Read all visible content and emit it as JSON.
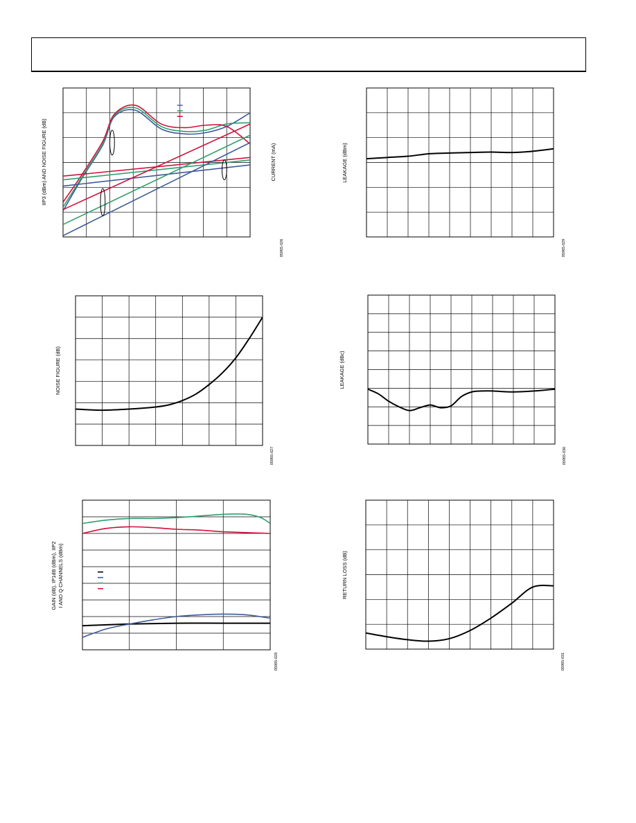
{
  "header": {
    "title": ""
  },
  "chart_data": [
    {
      "id": "c1",
      "type": "line",
      "ylabel": "IIP3 (dBm) AND NOISE FIGURE (dB)",
      "y2label": "CURRENT (mA)",
      "code": "05965-026",
      "xlim": [
        0,
        8
      ],
      "ylim": [
        0,
        6
      ],
      "xgrid": 8,
      "ygrid": 6,
      "grid": true,
      "legend": {
        "position": "top-right",
        "colors": [
          "#4a6fa5",
          "#2e9e6e",
          "#d0103a"
        ]
      },
      "series": [
        {
          "color": "#3c5a9a",
          "x": [
            0,
            0.8,
            1.7,
            2.2,
            3.1,
            4.2,
            5.2,
            6.1,
            7.0,
            8.0
          ],
          "values": [
            1.05,
            2.35,
            3.7,
            4.85,
            5.1,
            4.35,
            4.15,
            4.2,
            4.45,
            5.0
          ]
        },
        {
          "color": "#2e9e6e",
          "x": [
            0,
            0.8,
            1.7,
            2.2,
            3.1,
            4.2,
            5.2,
            6.1,
            7.0,
            8.0
          ],
          "values": [
            1.2,
            2.4,
            3.75,
            4.9,
            5.2,
            4.45,
            4.25,
            4.3,
            4.55,
            4.6
          ]
        },
        {
          "color": "#d0103a",
          "x": [
            0,
            0.8,
            1.7,
            2.2,
            3.1,
            4.2,
            5.2,
            6.1,
            7.0,
            8.0
          ],
          "values": [
            1.4,
            2.5,
            3.85,
            4.95,
            5.3,
            4.55,
            4.4,
            4.5,
            4.45,
            3.75
          ]
        },
        {
          "color": "#3c5a9a",
          "x": [
            0,
            8
          ],
          "values": [
            2.05,
            2.9
          ]
        },
        {
          "color": "#2e9e6e",
          "x": [
            0,
            8
          ],
          "values": [
            2.3,
            3.1
          ]
        },
        {
          "color": "#d0103a",
          "x": [
            0,
            8
          ],
          "values": [
            2.45,
            3.2
          ]
        },
        {
          "color": "#3c5a9a",
          "x": [
            0,
            8
          ],
          "values": [
            0.05,
            3.8
          ]
        },
        {
          "color": "#2e9e6e",
          "x": [
            0,
            8
          ],
          "values": [
            0.5,
            4.1
          ]
        },
        {
          "color": "#d0103a",
          "x": [
            0,
            8
          ],
          "values": [
            1.1,
            4.55
          ]
        }
      ],
      "annotations": [
        {
          "type": "ellipse",
          "x": 2.1,
          "y": 3.8,
          "rx": 0.1,
          "ry": 0.5
        },
        {
          "type": "ellipse",
          "x": 1.7,
          "y": 1.4,
          "rx": 0.1,
          "ry": 0.55
        },
        {
          "type": "ellipse",
          "x": 6.9,
          "y": 2.7,
          "rx": 0.1,
          "ry": 0.4
        }
      ]
    },
    {
      "id": "c2",
      "type": "line",
      "ylabel": "LEAKAGE (dBm)",
      "code": "05965-029",
      "xlim": [
        0,
        9
      ],
      "ylim": [
        0,
        6
      ],
      "xgrid": 9,
      "ygrid": 6,
      "grid": true,
      "series": [
        {
          "color": "#000000",
          "x": [
            0,
            1,
            2,
            3,
            4,
            5,
            6,
            7,
            8,
            9
          ],
          "values": [
            3.15,
            3.2,
            3.25,
            3.35,
            3.38,
            3.4,
            3.42,
            3.4,
            3.45,
            3.55
          ]
        }
      ]
    },
    {
      "id": "c3",
      "type": "line",
      "ylabel": "NOISE FIGURE (dB)",
      "code": "05965-027",
      "xlim": [
        0,
        7
      ],
      "ylim": [
        0,
        7
      ],
      "xgrid": 7,
      "ygrid": 7,
      "grid": true,
      "series": [
        {
          "color": "#000000",
          "x": [
            0,
            1,
            2,
            3,
            3.5,
            4,
            4.5,
            5,
            5.5,
            6,
            6.5,
            7
          ],
          "values": [
            1.7,
            1.65,
            1.7,
            1.8,
            1.9,
            2.1,
            2.4,
            2.85,
            3.4,
            4.1,
            5.0,
            6.0
          ]
        }
      ]
    },
    {
      "id": "c4",
      "type": "line",
      "ylabel": "LEAKAGE (dBc)",
      "code": "05965-030",
      "xlim": [
        0,
        9
      ],
      "ylim": [
        0,
        8
      ],
      "xgrid": 9,
      "ygrid": 8,
      "grid": true,
      "series": [
        {
          "color": "#000000",
          "x": [
            0,
            0.5,
            1,
            1.5,
            2,
            2.5,
            3,
            3.5,
            4,
            4.5,
            5,
            5.5,
            6,
            7,
            8,
            9
          ],
          "values": [
            2.95,
            2.7,
            2.3,
            2.0,
            1.8,
            1.95,
            2.1,
            1.95,
            2.05,
            2.55,
            2.8,
            2.85,
            2.85,
            2.8,
            2.85,
            2.95
          ]
        }
      ]
    },
    {
      "id": "c5",
      "type": "line",
      "ylabel": "GAIN (dB), IP1dB (dBm), IIP2",
      "ylabel2": "I AND Q CHANNELS (dBm)",
      "code": "05965-028",
      "xlim": [
        0,
        4
      ],
      "ylim": [
        0,
        9
      ],
      "xgrid": 4,
      "ygrid": 9,
      "grid": true,
      "legend": {
        "position": "middle-left",
        "colors": [
          "#000000",
          "#3c5a9a",
          "#2e9e6e",
          "#d0103a"
        ]
      },
      "series": [
        {
          "color": "#2e9e6e",
          "x": [
            0,
            0.5,
            1,
            1.5,
            2,
            2.5,
            3,
            3.5,
            3.8,
            4
          ],
          "values": [
            7.6,
            7.8,
            7.9,
            7.9,
            7.95,
            8.05,
            8.15,
            8.15,
            7.95,
            7.6
          ]
        },
        {
          "color": "#d0103a",
          "x": [
            0,
            0.5,
            1,
            1.5,
            2,
            2.5,
            3,
            3.5,
            4
          ],
          "values": [
            7.0,
            7.3,
            7.4,
            7.35,
            7.25,
            7.2,
            7.1,
            7.05,
            7.0
          ]
        },
        {
          "color": "#000000",
          "x": [
            0,
            1,
            2,
            3,
            4
          ],
          "values": [
            1.45,
            1.55,
            1.6,
            1.6,
            1.6
          ]
        },
        {
          "color": "#3c5a9a",
          "x": [
            0,
            0.5,
            1,
            1.5,
            2,
            2.5,
            3,
            3.5,
            4
          ],
          "values": [
            0.75,
            1.25,
            1.55,
            1.8,
            2.0,
            2.1,
            2.15,
            2.1,
            1.9
          ]
        }
      ]
    },
    {
      "id": "c6",
      "type": "line",
      "ylabel": "RETURN LOSS (dB)",
      "code": "05965-031",
      "xlim": [
        0,
        9
      ],
      "ylim": [
        0,
        6
      ],
      "xgrid": 9,
      "ygrid": 6,
      "grid": true,
      "series": [
        {
          "color": "#000000",
          "x": [
            0,
            1,
            2,
            3,
            4,
            5,
            6,
            7,
            8,
            9
          ],
          "values": [
            0.65,
            0.5,
            0.38,
            0.32,
            0.42,
            0.75,
            1.25,
            1.85,
            2.5,
            2.55
          ]
        }
      ]
    }
  ]
}
